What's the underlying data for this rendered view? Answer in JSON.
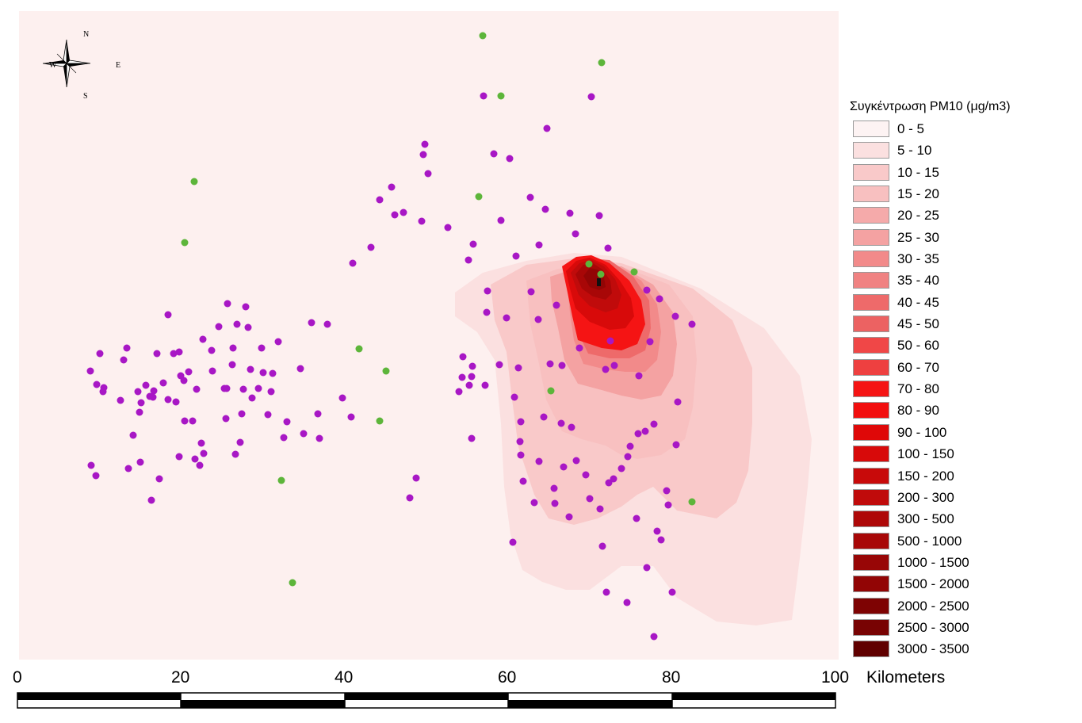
{
  "legend": {
    "title": "Συγκέντρωση PM10   (μg/m3)",
    "classes": [
      {
        "label": "0 - 5",
        "color": "#fdf3f3"
      },
      {
        "label": "5 - 10",
        "color": "#fbe0e0"
      },
      {
        "label": "10 - 15",
        "color": "#f9c9c9"
      },
      {
        "label": "15 - 20",
        "color": "#f8c0c0"
      },
      {
        "label": "20 - 25",
        "color": "#f5aaaa"
      },
      {
        "label": "25 - 30",
        "color": "#f4a2a2"
      },
      {
        "label": "30 - 35",
        "color": "#f28a8a"
      },
      {
        "label": "35 - 40",
        "color": "#f08282"
      },
      {
        "label": "40 - 45",
        "color": "#ee6a6a"
      },
      {
        "label": "45 - 50",
        "color": "#ec6262"
      },
      {
        "label": "50 - 60",
        "color": "#f04747"
      },
      {
        "label": "60 - 70",
        "color": "#ee4040"
      },
      {
        "label": "70 - 80",
        "color": "#f51414"
      },
      {
        "label": "80 - 90",
        "color": "#f20e0e"
      },
      {
        "label": "90 - 100",
        "color": "#df0808"
      },
      {
        "label": "100 - 150",
        "color": "#d80a0a"
      },
      {
        "label": "150 - 200",
        "color": "#c80a0a"
      },
      {
        "label": "200 - 300",
        "color": "#c00b0b"
      },
      {
        "label": "300 - 500",
        "color": "#ae0808"
      },
      {
        "label": "500 - 1000",
        "color": "#a80707"
      },
      {
        "label": "1000 - 1500",
        "color": "#980606"
      },
      {
        "label": "1500 - 2000",
        "color": "#920505"
      },
      {
        "label": "2000 - 2500",
        "color": "#7e0303"
      },
      {
        "label": "2500 - 3000",
        "color": "#780303"
      },
      {
        "label": "3000 - 3500",
        "color": "#600000"
      }
    ]
  },
  "compass": {
    "north": "N",
    "south": "S",
    "east": "E",
    "west": "W"
  },
  "scale_bar": {
    "ticks": [
      "0",
      "20",
      "40",
      "60",
      "80",
      "100"
    ],
    "unit": "Kilometers"
  },
  "point_colors": {
    "receptors": "#a817c5",
    "stations": "#5db53a"
  },
  "colors": {
    "background": "#fdf0ef",
    "frame_bg": "#ffffff"
  }
}
